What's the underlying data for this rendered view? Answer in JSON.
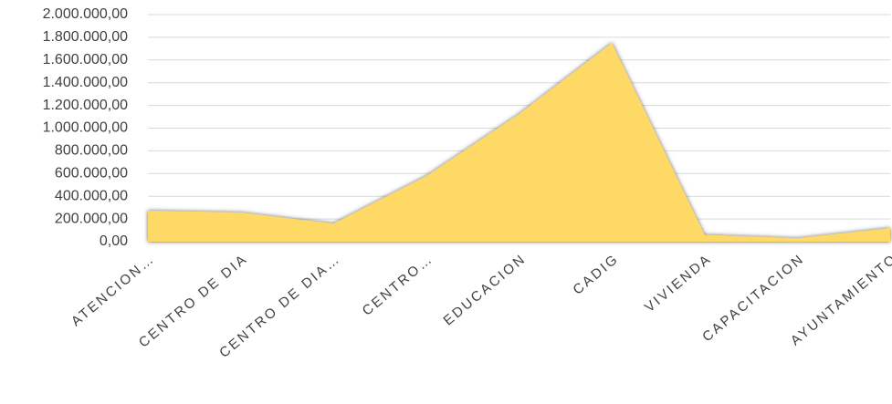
{
  "chart_data": {
    "type": "area",
    "categories": [
      "ATENCION…",
      "CENTRO DE DIA",
      "CENTRO  DE DIA…",
      "CENTRO…",
      "EDUCACION",
      "CADIG",
      "VIVIENDA",
      "CAPACITACION",
      "AYUNTAMIENTO"
    ],
    "values": [
      273000,
      257000,
      160000,
      578000,
      1124000,
      1751000,
      60000,
      30000,
      120000
    ],
    "color": "#ffd966",
    "ylim": [
      0,
      2000000
    ],
    "yticks": [
      {
        "value": 0,
        "label": "0,00"
      },
      {
        "value": 200000,
        "label": "200.000,00"
      },
      {
        "value": 400000,
        "label": "400.000,00"
      },
      {
        "value": 600000,
        "label": "600.000,00"
      },
      {
        "value": 800000,
        "label": "800.000,00"
      },
      {
        "value": 1000000,
        "label": "1.000.000,00"
      },
      {
        "value": 1200000,
        "label": "1.200.000,00"
      },
      {
        "value": 1400000,
        "label": "1.400.000,00"
      },
      {
        "value": 1600000,
        "label": "1.600.000,00"
      },
      {
        "value": 1800000,
        "label": "1.800.000,00"
      },
      {
        "value": 2000000,
        "label": "2.000.000,00"
      }
    ],
    "grid": true
  }
}
